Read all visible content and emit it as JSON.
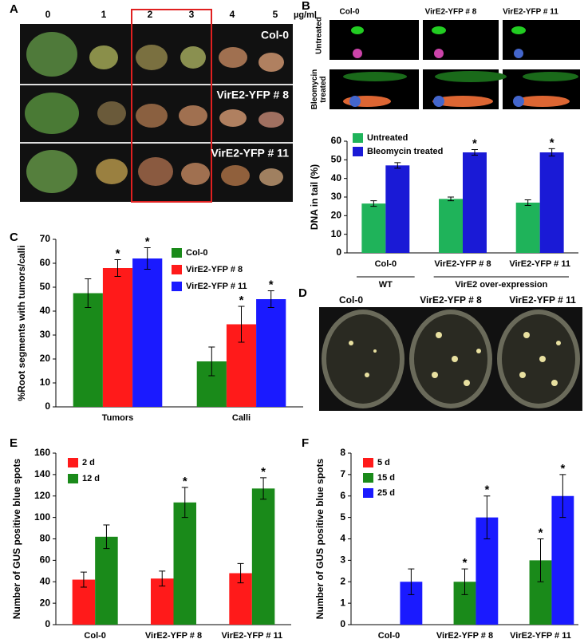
{
  "panel_labels": [
    "A",
    "B",
    "C",
    "D",
    "E",
    "F"
  ],
  "panel_a": {
    "doses": [
      "0",
      "1",
      "2",
      "3",
      "4",
      "5"
    ],
    "unit": "µg/ml",
    "lines": [
      "Col-0",
      "VirE2-YFP # 8",
      "VirE2-YFP # 11"
    ]
  },
  "panel_b": {
    "columns": [
      "Col-0",
      "VirE2-YFP # 8",
      "VirE2-YFP # 11"
    ],
    "rows": [
      "Untreated",
      "Bleomycin treated"
    ]
  },
  "panel_d": {
    "columns": [
      "Col-0",
      "VirE2-YFP # 8",
      "VirE2-YFP # 11"
    ]
  },
  "chart_data": [
    {
      "type": "bar",
      "y_label": "DNA in tail (%)",
      "categories": [
        "Col-0",
        "VirE2-YFP # 8",
        "VirE2-YFP # 11"
      ],
      "groups": [
        "WT",
        "VirE2 over-expression"
      ],
      "series": [
        {
          "name": "Untreated",
          "color": "#1fb35a",
          "values": [
            26.5,
            29,
            27
          ],
          "errors": [
            1.5,
            1,
            1.5
          ],
          "annotations": [
            null,
            null,
            null
          ]
        },
        {
          "name": "Bleomycin treated",
          "color": "#1a1ad6",
          "values": [
            47,
            54,
            54
          ],
          "errors": [
            1.5,
            1.5,
            2
          ],
          "annotations": [
            null,
            "*",
            "*"
          ]
        }
      ],
      "ylim": [
        0,
        60
      ],
      "yticks": [
        0,
        10,
        20,
        30,
        40,
        50,
        60
      ],
      "legend": "upper-left"
    },
    {
      "type": "bar",
      "y_label": "%Root segments with tumors/calli",
      "categories": [
        "Tumors",
        "Calli"
      ],
      "series": [
        {
          "name": "Col-0",
          "color": "#1a8a1a",
          "values": [
            47.5,
            19
          ],
          "errors": [
            6,
            6
          ],
          "annotations": [
            null,
            null
          ]
        },
        {
          "name": "VirE2-YFP # 8",
          "color": "#ff1a1a",
          "values": [
            58,
            34.5
          ],
          "errors": [
            3.5,
            7.5
          ],
          "annotations": [
            "*",
            "*"
          ]
        },
        {
          "name": "VirE2-YFP # 11",
          "color": "#1a1aff",
          "values": [
            62,
            45
          ],
          "errors": [
            4.5,
            3.5
          ],
          "annotations": [
            "*",
            "*"
          ]
        }
      ],
      "ylim": [
        0,
        70
      ],
      "yticks": [
        0,
        10,
        20,
        30,
        40,
        50,
        60,
        70
      ],
      "legend": "upper-right"
    },
    {
      "type": "bar",
      "y_label": "Number of GUS positive blue spots",
      "categories": [
        "Col-0",
        "VirE2-YFP # 8",
        "VirE2-YFP # 11"
      ],
      "series": [
        {
          "name": "2 d",
          "color": "#ff1a1a",
          "values": [
            42,
            43,
            48
          ],
          "errors": [
            7,
            7,
            9
          ],
          "annotations": [
            null,
            null,
            null
          ]
        },
        {
          "name": "12 d",
          "color": "#1a8a1a",
          "values": [
            82,
            114,
            127
          ],
          "errors": [
            11,
            14,
            10
          ],
          "annotations": [
            null,
            "*",
            "*"
          ]
        }
      ],
      "ylim": [
        0,
        160
      ],
      "yticks": [
        0,
        20,
        40,
        60,
        80,
        100,
        120,
        140,
        160
      ],
      "legend": "upper-left"
    },
    {
      "type": "bar",
      "y_label": "Number of GUS positive blue spots",
      "categories": [
        "Col-0",
        "VirE2-YFP # 8",
        "VirE2-YFP # 11"
      ],
      "series": [
        {
          "name": "5 d",
          "color": "#ff1a1a",
          "values": [
            0,
            0,
            0
          ],
          "errors": [
            0,
            0,
            0
          ],
          "annotations": [
            null,
            null,
            null
          ]
        },
        {
          "name": "15 d",
          "color": "#1a8a1a",
          "values": [
            0,
            2,
            3
          ],
          "errors": [
            0,
            0.6,
            1
          ],
          "annotations": [
            null,
            "*",
            "*"
          ]
        },
        {
          "name": "25 d",
          "color": "#1a1aff",
          "values": [
            2,
            5,
            6
          ],
          "errors": [
            0.6,
            1,
            1
          ],
          "annotations": [
            null,
            "*",
            "*"
          ]
        }
      ],
      "ylim": [
        0,
        8
      ],
      "yticks": [
        0,
        1,
        2,
        3,
        4,
        5,
        6,
        7,
        8
      ],
      "legend": "upper-left"
    }
  ]
}
